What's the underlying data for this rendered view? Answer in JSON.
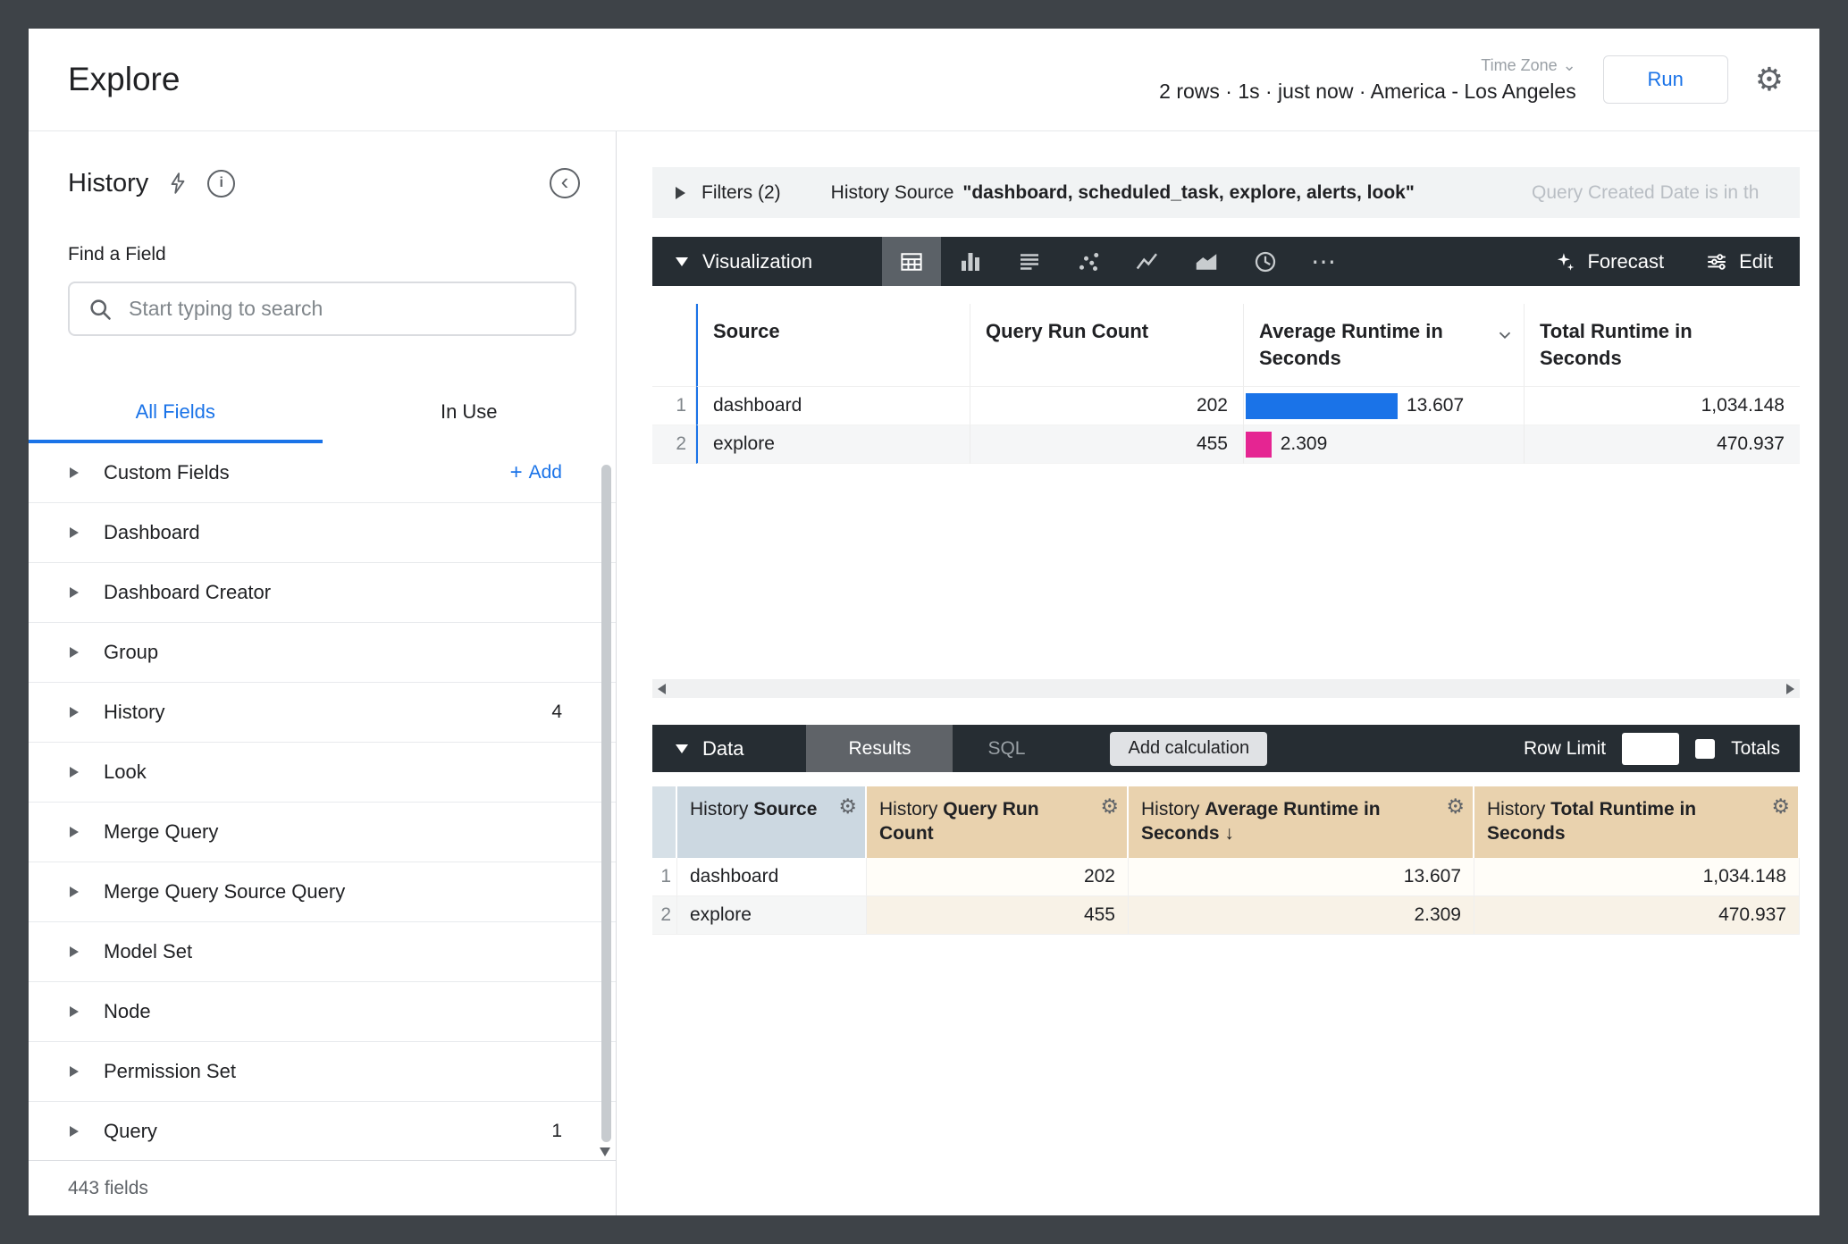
{
  "colors": {
    "accent_blue": "#1a73e8",
    "toolbar_bg": "#262d33",
    "bar_blue": "#1a73e8",
    "bar_pink": "#e52592",
    "dimension_header_bg": "#ccd8e1",
    "measure_header_bg": "#e9d2ae"
  },
  "icons": {
    "gear": "⚙",
    "more": "⋯",
    "sort_desc": "↓",
    "chevron_down": "⌄",
    "collapse": "‹",
    "info": "i",
    "plus": "+"
  },
  "header": {
    "title": "Explore",
    "time_zone_label": "Time Zone",
    "status_text": "2 rows · 1s · just now · America - Los Angeles",
    "run_button": "Run"
  },
  "sidebar": {
    "panel_title": "History",
    "find_field_label": "Find a Field",
    "search_placeholder": "Start typing to search",
    "tabs": {
      "all_fields": "All Fields",
      "in_use": "In Use"
    },
    "groups": [
      {
        "label": "Custom Fields",
        "action": "Add"
      },
      {
        "label": "Dashboard"
      },
      {
        "label": "Dashboard Creator"
      },
      {
        "label": "Group"
      },
      {
        "label": "History",
        "count": "4"
      },
      {
        "label": "Look"
      },
      {
        "label": "Merge Query"
      },
      {
        "label": "Merge Query Source Query"
      },
      {
        "label": "Model Set"
      },
      {
        "label": "Node"
      },
      {
        "label": "Permission Set"
      },
      {
        "label": "Query",
        "count": "1"
      }
    ],
    "footer_text": "443 fields"
  },
  "filters_bar": {
    "label": "Filters (2)",
    "filter_source_field": "History Source",
    "filter_source_value": "\"dashboard, scheduled_task, explore, alerts, look\"",
    "filter_date_text": "Query Created Date is in th"
  },
  "viz_toolbar": {
    "label": "Visualization",
    "forecast_label": "Forecast",
    "edit_label": "Edit"
  },
  "viz_table": {
    "columns": [
      "Source",
      "Query Run Count",
      "Average Runtime in Seconds",
      "Total Runtime in Seconds"
    ],
    "rows": [
      {
        "num": "1",
        "source": "dashboard",
        "query_run_count": "202",
        "avg_runtime": "13.607",
        "total_runtime": "1,034.148",
        "bar_pct": 55,
        "bar_color": "#1a73e8"
      },
      {
        "num": "2",
        "source": "explore",
        "query_run_count": "455",
        "avg_runtime": "2.309",
        "total_runtime": "470.937",
        "bar_pct": 9.3,
        "bar_color": "#e52592"
      }
    ]
  },
  "data_toolbar": {
    "label": "Data",
    "results_tab": "Results",
    "sql_tab": "SQL",
    "add_calculation": "Add calculation",
    "row_limit_label": "Row Limit",
    "row_limit_value": "",
    "totals_label": "Totals"
  },
  "data_table": {
    "headers": [
      {
        "view": "History",
        "field": "Source"
      },
      {
        "view": "History",
        "field": "Query Run Count"
      },
      {
        "view": "History",
        "field": "Average Runtime in Seconds",
        "sort": "desc"
      },
      {
        "view": "History",
        "field": "Total Runtime in Seconds"
      }
    ],
    "rows": [
      {
        "num": "1",
        "source": "dashboard",
        "query_run_count": "202",
        "avg_runtime": "13.607",
        "total_runtime": "1,034.148"
      },
      {
        "num": "2",
        "source": "explore",
        "query_run_count": "455",
        "avg_runtime": "2.309",
        "total_runtime": "470.937"
      }
    ]
  }
}
